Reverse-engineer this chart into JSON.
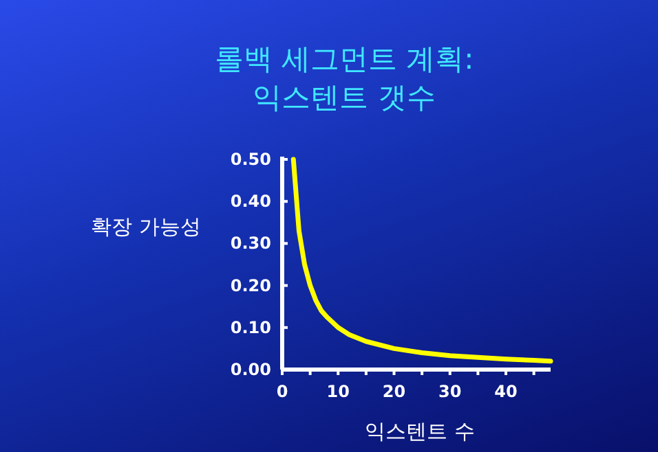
{
  "chart_data": {
    "type": "line",
    "title": "롤백 세그먼트 계획:\n익스텐트 갯수",
    "xlabel": "익스텐트 수",
    "ylabel": "확장 가능성",
    "x": [
      2,
      3,
      4,
      5,
      6,
      7,
      8,
      10,
      12,
      15,
      20,
      25,
      30,
      35,
      40,
      45,
      48
    ],
    "series": [
      {
        "color": "#ffff00",
        "values": [
          0.5,
          0.33,
          0.25,
          0.2,
          0.165,
          0.14,
          0.125,
          0.1,
          0.083,
          0.067,
          0.05,
          0.04,
          0.033,
          0.029,
          0.025,
          0.022,
          0.02
        ]
      }
    ],
    "xlim": [
      0,
      48
    ],
    "ylim": [
      0,
      0.5
    ],
    "xticks": [
      0,
      {
        "value": 5,
        "label": null
      },
      10,
      {
        "value": 15,
        "label": null
      },
      20,
      {
        "value": 25,
        "label": null
      },
      30,
      {
        "value": 35,
        "label": null
      },
      40,
      {
        "value": 45,
        "label": null
      }
    ],
    "yticks": [
      {
        "value": 0,
        "label": "0.00"
      },
      {
        "value": 0.1,
        "label": "0.10"
      },
      {
        "value": 0.2,
        "label": "0.20"
      },
      {
        "value": 0.3,
        "label": "0.30"
      },
      {
        "value": 0.4,
        "label": "0.40"
      },
      {
        "value": 0.5,
        "label": "0.50"
      }
    ],
    "grid": false,
    "marker": "none",
    "line_style": "solid"
  }
}
